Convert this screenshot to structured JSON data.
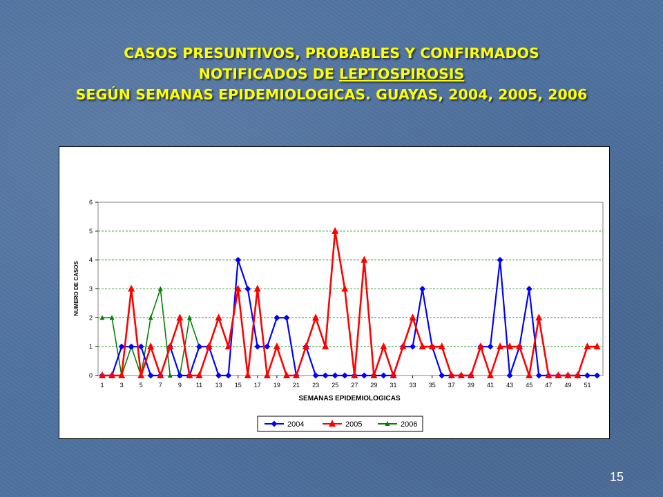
{
  "slide": {
    "title_line1": "CASOS PRESUNTIVOS, PROBABLES Y CONFIRMADOS",
    "title_line2_prefix": "NOTIFICADOS DE ",
    "title_line2_underlined": "LEPTOSPIROSIS",
    "title_line3": "SEGÚN SEMANAS EPIDEMIOLOGICAS.  GUAYAS, 2004, 2005, 2006",
    "page_number": "15",
    "title_color": "#ffff00"
  },
  "chart_data": {
    "type": "line",
    "xlabel": "SEMANAS EPIDEMIOLOGICAS",
    "ylabel": "NUMERO DE CASOS",
    "ylim": [
      0,
      6
    ],
    "yticks": [
      "0",
      "1",
      "2",
      "3",
      "4",
      "5",
      "6"
    ],
    "xlim": [
      1,
      52
    ],
    "xticks": [
      "1",
      "3",
      "5",
      "7",
      "9",
      "11",
      "13",
      "15",
      "17",
      "19",
      "21",
      "23",
      "25",
      "27",
      "29",
      "31",
      "33",
      "35",
      "37",
      "39",
      "41",
      "43",
      "45",
      "47",
      "49",
      "51"
    ],
    "grid": "horizontal dashed",
    "legend_position": "bottom",
    "series": [
      {
        "name": "2004",
        "color": "#0000ff",
        "marker": "diamond",
        "values": [
          0,
          0,
          1,
          1,
          1,
          0,
          0,
          1,
          0,
          0,
          1,
          1,
          0,
          0,
          4,
          3,
          1,
          1,
          2,
          2,
          0,
          1,
          0,
          0,
          0,
          0,
          0,
          0,
          0,
          0,
          0,
          1,
          1,
          3,
          1,
          0,
          0,
          0,
          0,
          1,
          1,
          4,
          0,
          1,
          3,
          0,
          0,
          0,
          0,
          0,
          0,
          0
        ]
      },
      {
        "name": "2005",
        "color": "#ff0000",
        "marker": "triangle",
        "values": [
          0,
          0,
          0,
          3,
          0,
          1,
          0,
          1,
          2,
          0,
          0,
          1,
          2,
          1,
          3,
          0,
          3,
          0,
          1,
          0,
          0,
          1,
          2,
          1,
          5,
          3,
          0,
          4,
          0,
          1,
          0,
          1,
          2,
          1,
          1,
          1,
          0,
          0,
          0,
          1,
          0,
          1,
          1,
          1,
          0,
          2,
          0,
          0,
          0,
          0,
          1,
          1
        ]
      },
      {
        "name": "2006",
        "color": "#008000",
        "marker": "triangle-small",
        "values": [
          2,
          2,
          0,
          1,
          0,
          2,
          3,
          0,
          0,
          2,
          1
        ]
      }
    ]
  }
}
